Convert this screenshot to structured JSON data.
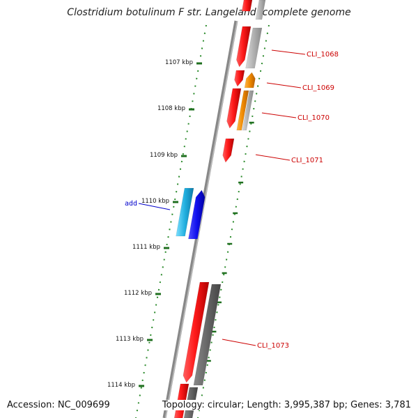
{
  "title": "Clostridium botulinum F str. Langeland, complete genome",
  "accession_text": "Accession: NC_009699",
  "summary_text": "Topology: circular; Length: 3,995,387 bp; Genes: 3,781",
  "colors": {
    "backbone": "#777777",
    "tick_dots": "#2a8a2a",
    "tick_major": "#1f6f1f",
    "gene_red": "#ee1111",
    "gene_orange": "#f08a00",
    "gene_blue": "#1a1aee",
    "gene_cyan": "#22b0e0",
    "gene_grey": "#9a9a9a",
    "gene_dark_grey": "#666666",
    "label_red": "#cc0000",
    "label_blue": "#0000cc"
  },
  "scale_ticks": [
    "1107 kbp",
    "1108 kbp",
    "1109 kbp",
    "1110 kbp",
    "1111 kbp",
    "1112 kbp",
    "1113 kbp",
    "1114 kbp"
  ],
  "gene_labels": [
    {
      "text": "CLI_1068",
      "color": "red"
    },
    {
      "text": "CLI_1069",
      "color": "red"
    },
    {
      "text": "CLI_1070",
      "color": "red"
    },
    {
      "text": "CLI_1071",
      "color": "red"
    },
    {
      "text": "add",
      "color": "blue"
    },
    {
      "text": "CLI_1073",
      "color": "red"
    }
  ]
}
